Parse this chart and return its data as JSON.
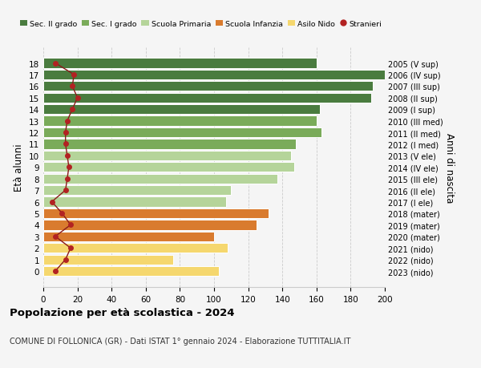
{
  "ages": [
    18,
    17,
    16,
    15,
    14,
    13,
    12,
    11,
    10,
    9,
    8,
    7,
    6,
    5,
    4,
    3,
    2,
    1,
    0
  ],
  "bar_values": [
    160,
    200,
    193,
    192,
    162,
    160,
    163,
    148,
    145,
    147,
    137,
    110,
    107,
    132,
    125,
    100,
    108,
    76,
    103
  ],
  "stranieri_values": [
    7,
    18,
    17,
    20,
    17,
    14,
    13,
    13,
    14,
    15,
    14,
    13,
    5,
    11,
    16,
    7,
    16,
    13,
    7
  ],
  "bar_colors": [
    "#4a7c3f",
    "#4a7c3f",
    "#4a7c3f",
    "#4a7c3f",
    "#4a7c3f",
    "#7aab5a",
    "#7aab5a",
    "#7aab5a",
    "#b5d49a",
    "#b5d49a",
    "#b5d49a",
    "#b5d49a",
    "#b5d49a",
    "#d97b2e",
    "#d97b2e",
    "#d97b2e",
    "#f5d76e",
    "#f5d76e",
    "#f5d76e"
  ],
  "right_labels": [
    "2005 (V sup)",
    "2006 (IV sup)",
    "2007 (III sup)",
    "2008 (II sup)",
    "2009 (I sup)",
    "2010 (III med)",
    "2011 (II med)",
    "2012 (I med)",
    "2013 (V ele)",
    "2014 (IV ele)",
    "2015 (III ele)",
    "2016 (II ele)",
    "2017 (I ele)",
    "2018 (mater)",
    "2019 (mater)",
    "2020 (mater)",
    "2021 (nido)",
    "2022 (nido)",
    "2023 (nido)"
  ],
  "legend_labels": [
    "Sec. II grado",
    "Sec. I grado",
    "Scuola Primaria",
    "Scuola Infanzia",
    "Asilo Nido",
    "Stranieri"
  ],
  "legend_colors": [
    "#4a7c3f",
    "#7aab5a",
    "#b5d49a",
    "#d97b2e",
    "#f5d76e",
    "#b22222"
  ],
  "stranieri_color": "#b22222",
  "stranieri_line_color": "#8b1a1a",
  "ylabel": "Età alunni",
  "right_ylabel": "Anni di nascita",
  "title": "Popolazione per età scolastica - 2024",
  "subtitle": "COMUNE DI FOLLONICA (GR) - Dati ISTAT 1° gennaio 2024 - Elaborazione TUTTITALIA.IT",
  "xlim": [
    0,
    200
  ],
  "xticks": [
    0,
    20,
    40,
    60,
    80,
    100,
    120,
    140,
    160,
    180,
    200
  ],
  "bg_color": "#f5f5f5",
  "bar_edge_color": "white",
  "grid_color": "#cccccc"
}
